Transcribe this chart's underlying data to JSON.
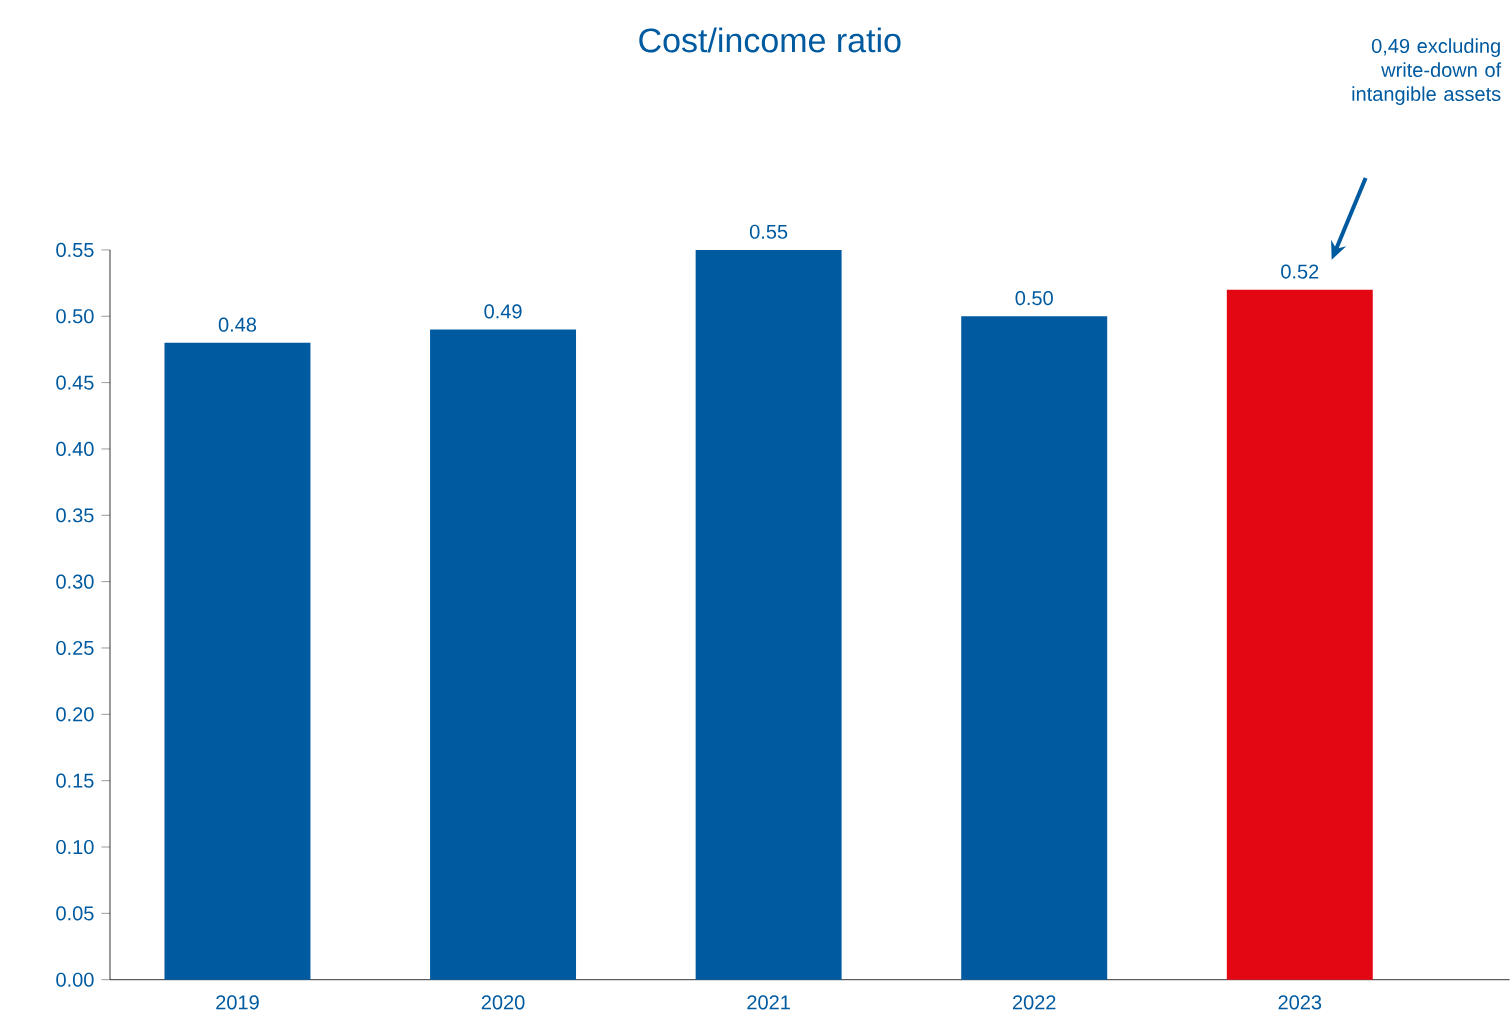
{
  "chart_data": {
    "type": "bar",
    "title": "Cost/income ratio",
    "categories": [
      "2019",
      "2020",
      "2021",
      "2022",
      "2023"
    ],
    "values": [
      0.48,
      0.49,
      0.55,
      0.5,
      0.52
    ],
    "value_labels": [
      "0.48",
      "0.49",
      "0.55",
      "0.50",
      "0.52"
    ],
    "colors": [
      "#005aa0",
      "#005aa0",
      "#005aa0",
      "#005aa0",
      "#e30613"
    ],
    "ylim": [
      0,
      0.55
    ],
    "yticks": [
      {
        "value": 0,
        "label": "0.00"
      },
      {
        "value": 0.05,
        "label": "0.05"
      },
      {
        "value": 0.1,
        "label": "0.10"
      },
      {
        "value": 0.15,
        "label": "0.15"
      },
      {
        "value": 0.2,
        "label": "0.20"
      },
      {
        "value": 0.25,
        "label": "0.25"
      },
      {
        "value": 0.3,
        "label": "0.30"
      },
      {
        "value": 0.35,
        "label": "0.35"
      },
      {
        "value": 0.4,
        "label": "0.40"
      },
      {
        "value": 0.45,
        "label": "0.45"
      },
      {
        "value": 0.5,
        "label": "0.50"
      },
      {
        "value": 0.55,
        "label": "0.55"
      }
    ],
    "annotations": [
      "0,49 excluding write-down of intangible assets"
    ]
  }
}
